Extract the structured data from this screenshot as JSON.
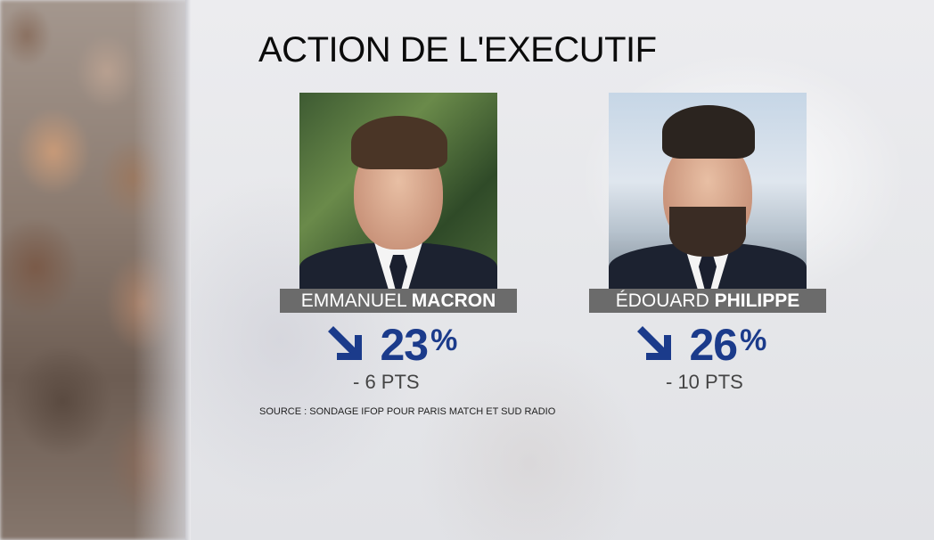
{
  "title": "ACTION DE L'EXECUTIF",
  "people": [
    {
      "first_name": "EMMANUEL",
      "last_name": "MACRON",
      "score": "23",
      "unit": "%",
      "trend": "down",
      "change": "- 6 PTS"
    },
    {
      "first_name": "ÉDOUARD",
      "last_name": "PHILIPPE",
      "score": "26",
      "unit": "%",
      "trend": "down",
      "change": "- 10 PTS"
    }
  ],
  "source": "SOURCE : SONDAGE IFOP POUR PARIS MATCH ET SUD RADIO",
  "colors": {
    "accent": "#1b3b8b",
    "name_bar": "#6b6b6b",
    "title": "#0b0b0b"
  },
  "icons": [
    "arrow-down-right-icon"
  ]
}
